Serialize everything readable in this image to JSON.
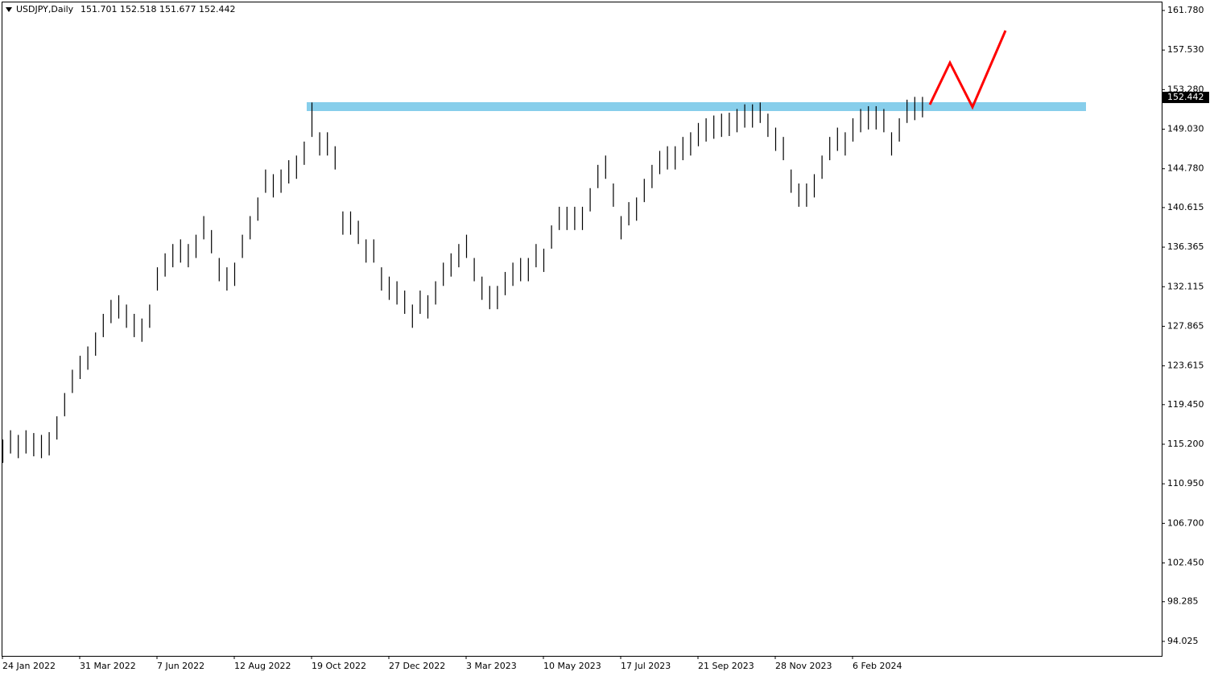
{
  "chart_data": {
    "type": "hlbar",
    "title": "USDJPY,Daily",
    "header_values": [
      151.701,
      152.518,
      151.677,
      152.442
    ],
    "last_price": 152.442,
    "color": "#000000",
    "categories": [
      "24 Jan 2022",
      null,
      null,
      null,
      null,
      null,
      null,
      null,
      null,
      null,
      "31 Mar 2022",
      null,
      null,
      null,
      null,
      null,
      null,
      null,
      null,
      null,
      "7 Jun 2022",
      null,
      null,
      null,
      null,
      null,
      null,
      null,
      null,
      null,
      "12 Aug 2022",
      null,
      null,
      null,
      null,
      null,
      null,
      null,
      null,
      null,
      "19 Oct 2022",
      null,
      null,
      null,
      null,
      null,
      null,
      null,
      null,
      null,
      "27 Dec 2022",
      null,
      null,
      null,
      null,
      null,
      null,
      null,
      null,
      null,
      "3 Mar 2023",
      null,
      null,
      null,
      null,
      null,
      null,
      null,
      null,
      null,
      "10 May 2023",
      null,
      null,
      null,
      null,
      null,
      null,
      null,
      null,
      null,
      "17 Jul 2023",
      null,
      null,
      null,
      null,
      null,
      null,
      null,
      null,
      null,
      "21 Sep 2023",
      null,
      null,
      null,
      null,
      null,
      null,
      null,
      null,
      null,
      "28 Nov 2023",
      null,
      null,
      null,
      null,
      null,
      null,
      null,
      null,
      null,
      "6 Feb 2024",
      null,
      null,
      null,
      null,
      null,
      null,
      null,
      null,
      null
    ],
    "high": [
      115.7,
      116.7,
      116.2,
      116.7,
      116.4,
      116.2,
      116.5,
      118.2,
      120.7,
      123.2,
      124.7,
      125.7,
      127.2,
      129.2,
      130.7,
      131.2,
      130.2,
      129.2,
      128.7,
      130.2,
      134.2,
      135.7,
      136.7,
      137.2,
      136.7,
      137.7,
      139.7,
      138.2,
      135.2,
      134.2,
      134.7,
      137.7,
      139.7,
      141.7,
      144.7,
      144.2,
      144.7,
      145.7,
      146.2,
      147.7,
      151.9,
      148.7,
      148.7,
      147.2,
      140.2,
      140.2,
      139.2,
      137.2,
      137.2,
      134.2,
      133.2,
      132.7,
      131.7,
      130.2,
      131.7,
      131.2,
      132.7,
      134.7,
      135.7,
      136.7,
      137.7,
      135.2,
      133.2,
      132.2,
      132.2,
      133.7,
      134.7,
      135.2,
      135.2,
      136.7,
      136.2,
      138.7,
      140.7,
      140.7,
      140.7,
      140.7,
      142.7,
      145.2,
      146.2,
      143.2,
      139.7,
      141.2,
      141.7,
      143.7,
      145.2,
      146.7,
      147.2,
      147.2,
      148.2,
      148.7,
      149.7,
      150.2,
      150.5,
      150.7,
      150.8,
      151.2,
      151.7,
      151.7,
      151.9,
      150.7,
      149.2,
      148.2,
      144.7,
      143.2,
      143.2,
      144.2,
      146.2,
      148.2,
      149.2,
      148.7,
      150.2,
      151.2,
      151.5,
      151.5,
      151.2,
      148.7,
      150.2,
      152.2,
      152.5,
      152.5
    ],
    "low": [
      113.2,
      114.2,
      113.7,
      114.2,
      113.9,
      113.7,
      114.0,
      115.7,
      118.2,
      120.7,
      122.2,
      123.2,
      124.7,
      126.7,
      128.2,
      128.7,
      127.7,
      126.7,
      126.2,
      127.7,
      131.7,
      133.2,
      134.2,
      134.7,
      134.2,
      135.2,
      137.2,
      135.7,
      132.7,
      131.7,
      132.2,
      135.2,
      137.2,
      139.2,
      142.2,
      141.7,
      142.2,
      143.2,
      143.7,
      145.2,
      148.2,
      146.2,
      146.2,
      144.7,
      137.7,
      137.7,
      136.7,
      134.7,
      134.7,
      131.7,
      130.7,
      130.2,
      129.2,
      127.7,
      129.2,
      128.7,
      130.2,
      132.2,
      133.2,
      134.2,
      135.2,
      132.7,
      130.7,
      129.7,
      129.7,
      131.2,
      132.2,
      132.7,
      132.7,
      134.2,
      133.7,
      136.2,
      138.2,
      138.2,
      138.2,
      138.2,
      140.2,
      142.7,
      143.7,
      140.7,
      137.2,
      138.7,
      139.2,
      141.2,
      142.7,
      144.2,
      144.7,
      144.7,
      145.7,
      146.2,
      147.2,
      147.7,
      148.0,
      148.2,
      148.3,
      148.7,
      149.2,
      149.2,
      149.7,
      148.2,
      146.7,
      145.7,
      142.2,
      140.7,
      140.7,
      141.7,
      143.7,
      145.7,
      146.7,
      146.2,
      147.7,
      148.7,
      149.0,
      149.0,
      148.7,
      146.2,
      147.7,
      149.7,
      150.0,
      150.3
    ],
    "ylim": [
      92.47,
      162.904
    ],
    "yticks": [
      {
        "value": 161.78,
        "label": "161.780"
      },
      {
        "value": 157.53,
        "label": "157.530"
      },
      {
        "value": 153.28,
        "label": "153.280"
      },
      {
        "value": 149.03,
        "label": "149.030"
      },
      {
        "value": 144.78,
        "label": "144.780"
      },
      {
        "value": 140.615,
        "label": "140.615"
      },
      {
        "value": 136.365,
        "label": "136.365"
      },
      {
        "value": 132.115,
        "label": "132.115"
      },
      {
        "value": 127.865,
        "label": "127.865"
      },
      {
        "value": 123.615,
        "label": "123.615"
      },
      {
        "value": 119.45,
        "label": "119.450"
      },
      {
        "value": 115.2,
        "label": "115.200"
      },
      {
        "value": 110.95,
        "label": "110.950"
      },
      {
        "value": 106.7,
        "label": "106.700"
      },
      {
        "value": 102.45,
        "label": "102.450"
      },
      {
        "value": 98.285,
        "label": "98.285"
      },
      {
        "value": 94.025,
        "label": "94.025"
      }
    ]
  }
}
